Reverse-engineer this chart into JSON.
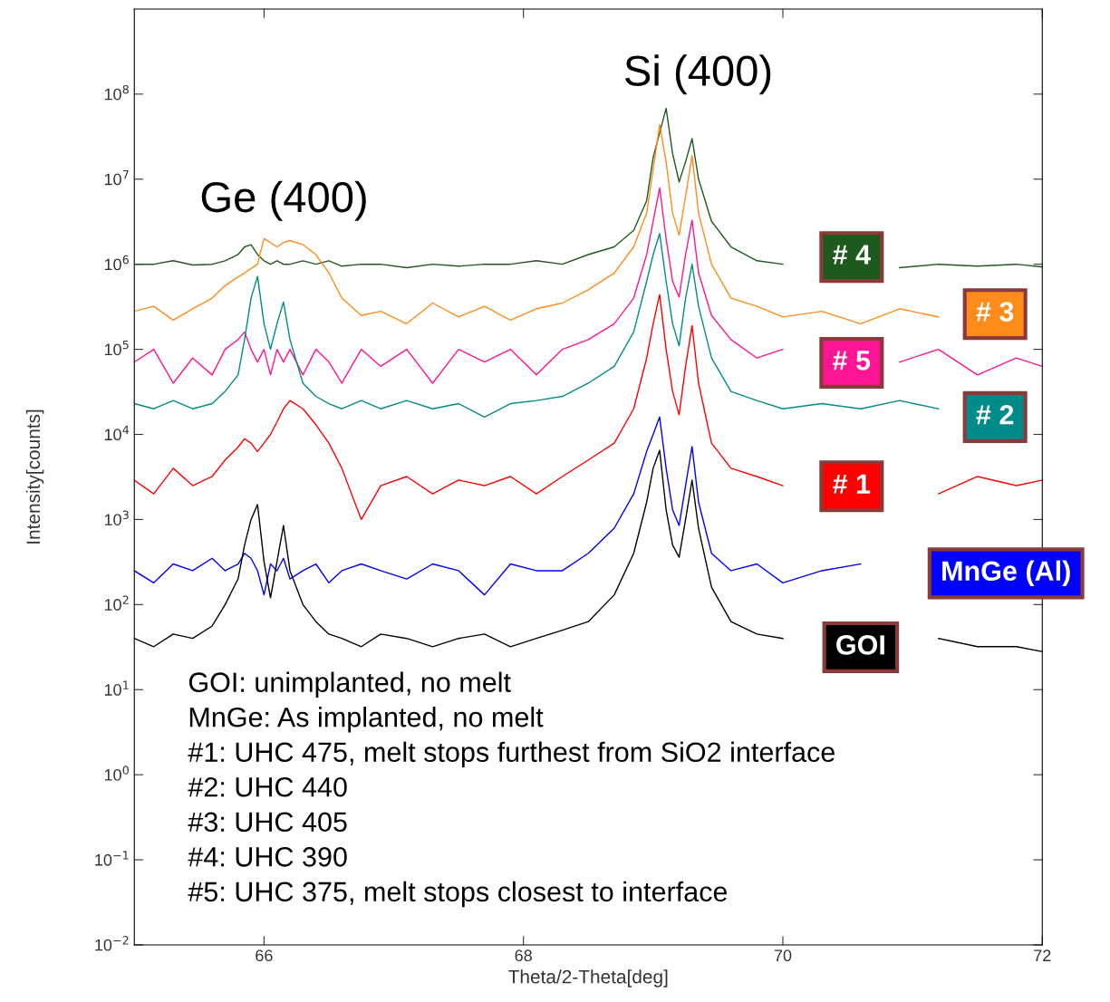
{
  "chart_data": {
    "type": "line",
    "xlabel": "Theta/2-Theta[deg]",
    "ylabel": "Intensity[counts]",
    "xlim": [
      65,
      72
    ],
    "xticks": [
      66,
      68,
      70,
      72
    ],
    "log": "y",
    "ylim": [
      0.01,
      1000000000
    ],
    "yticks": [
      {
        "value": 0.01,
        "label": "10$^{−2}$"
      },
      {
        "value": 0.1,
        "label": "10$^{−1}$"
      },
      {
        "value": 1,
        "label": "10$^{0}$"
      },
      {
        "value": 10,
        "label": "10$^{1}$"
      },
      {
        "value": 100,
        "label": "10$^{2}$"
      },
      {
        "value": 1000,
        "label": "10$^{3}$"
      },
      {
        "value": 10000,
        "label": "10$^{4}$"
      },
      {
        "value": 100000,
        "label": "10$^{5}$"
      },
      {
        "value": 1000000,
        "label": "10$^{6}$"
      },
      {
        "value": 10000000,
        "label": "10$^{7}$"
      },
      {
        "value": 100000000,
        "label": "10$^{8}$"
      }
    ],
    "grid": false,
    "legend": false,
    "marker": "none",
    "line_style": "solid",
    "x": [
      65.0,
      65.15,
      65.3,
      65.45,
      65.6,
      65.7,
      65.8,
      65.85,
      65.9,
      65.95,
      66.0,
      66.05,
      66.1,
      66.15,
      66.2,
      66.3,
      66.4,
      66.5,
      66.6,
      66.75,
      66.9,
      67.1,
      67.3,
      67.5,
      67.7,
      67.9,
      68.1,
      68.3,
      68.5,
      68.7,
      68.85,
      68.95,
      69.0,
      69.05,
      69.1,
      69.15,
      69.2,
      69.25,
      69.3,
      69.35,
      69.45,
      69.6,
      69.8,
      70.0,
      70.3,
      70.6,
      70.9,
      71.2,
      71.5,
      71.8,
      72.0
    ],
    "series": [
      {
        "name": "# 4",
        "color": "#1e5a1e",
        "values": [
          1000000.0,
          1000000.0,
          1100000.0,
          980000.0,
          1000000.0,
          1100000.0,
          1300000.0,
          1600000.0,
          1700000.0,
          1300000.0,
          1100000.0,
          1000000.0,
          1100000.0,
          1000000.0,
          1000000.0,
          1100000.0,
          1000000.0,
          1100000.0,
          950000.0,
          1000000.0,
          1000000.0,
          910000.0,
          1000000.0,
          950000.0,
          1000000.0,
          1000000.0,
          1100000.0,
          1000000.0,
          1300000.0,
          1600000.0,
          2500000.0,
          5600000.0,
          18000000.0,
          35000000.0,
          68000000.0,
          20000000.0,
          9300000.0,
          16000000.0,
          30000000.0,
          10000000.0,
          3200000.0,
          1600000.0,
          1100000.0,
          1000000.0,
          null,
          null,
          910000.0,
          1000000.0,
          950000.0,
          1000000.0,
          930000.0
        ]
      },
      {
        "name": "# 3",
        "color": "#ff8c1a",
        "values": [
          280000.0,
          320000.0,
          220000.0,
          300000.0,
          400000.0,
          560000.0,
          710000.0,
          790000.0,
          890000.0,
          1000000.0,
          2000000.0,
          1800000.0,
          1600000.0,
          1800000.0,
          1900000.0,
          1700000.0,
          1300000.0,
          790000.0,
          400000.0,
          250000.0,
          280000.0,
          200000.0,
          350000.0,
          240000.0,
          320000.0,
          220000.0,
          300000.0,
          350000.0,
          500000.0,
          790000.0,
          1600000.0,
          4000000.0,
          13000000.0,
          44000000.0,
          16000000.0,
          4000000.0,
          2200000.0,
          6300000.0,
          19000000.0,
          4000000.0,
          1000000.0,
          400000.0,
          320000.0,
          240000.0,
          280000.0,
          200000.0,
          300000.0,
          240000.0,
          null,
          null,
          null
        ]
      },
      {
        "name": "# 5",
        "color": "#ff1493",
        "values": [
          71000.0,
          100000.0,
          40000.0,
          79000.0,
          50000.0,
          100000.0,
          130000.0,
          160000.0,
          100000.0,
          71000.0,
          100000.0,
          50000.0,
          100000.0,
          71000.0,
          100000.0,
          50000.0,
          100000.0,
          71000.0,
          40000.0,
          100000.0,
          63000.0,
          100000.0,
          40000.0,
          100000.0,
          71000.0,
          100000.0,
          50000.0,
          100000.0,
          130000.0,
          200000.0,
          400000.0,
          1300000.0,
          3200000.0,
          7900000.0,
          2000000.0,
          630000.0,
          410000.0,
          1300000.0,
          3300000.0,
          790000.0,
          250000.0,
          130000.0,
          79000.0,
          100000.0,
          null,
          null,
          71000.0,
          100000.0,
          50000.0,
          79000.0,
          63000.0
        ]
      },
      {
        "name": "# 2",
        "color": "#008b8b",
        "values": [
          23000.0,
          20000.0,
          25000.0,
          20000.0,
          23000.0,
          32000.0,
          50000.0,
          130000.0,
          400000.0,
          720000.0,
          200000.0,
          100000.0,
          200000.0,
          360000.0,
          130000.0,
          40000.0,
          28000.0,
          23000.0,
          20000.0,
          25000.0,
          20000.0,
          25000.0,
          20000.0,
          23000.0,
          16000.0,
          23000.0,
          25000.0,
          28000.0,
          40000.0,
          63000.0,
          160000.0,
          630000.0,
          1300000.0,
          2300000.0,
          630000.0,
          200000.0,
          110000.0,
          400000.0,
          1000000.0,
          320000.0,
          79000.0,
          32000.0,
          25000.0,
          20000.0,
          23000.0,
          20000.0,
          25000.0,
          20000.0,
          null,
          null,
          null
        ]
      },
      {
        "name": "# 1",
        "color": "#ff0000",
        "values": [
          2900.0,
          2000.0,
          4000.0,
          2500.0,
          3200.0,
          5000.0,
          7100.0,
          8900.0,
          7900.0,
          6300.0,
          7900.0,
          10000.0,
          14000.0,
          20000.0,
          25000.0,
          20000.0,
          13000.0,
          7900.0,
          4000.0,
          1000.0,
          2500.0,
          3200.0,
          2000.0,
          2900.0,
          2500.0,
          3200.0,
          2000.0,
          3200.0,
          5000.0,
          7900.0,
          20000.0,
          79000.0,
          200000.0,
          440000.0,
          100000.0,
          32000.0,
          17000.0,
          63000.0,
          190000.0,
          40000.0,
          7900.0,
          4000.0,
          3200.0,
          2500.0,
          null,
          null,
          null,
          2000.0,
          3200.0,
          2500.0,
          2900.0
        ]
      },
      {
        "name": "MnGe (Al)",
        "color": "#0000ff",
        "values": [
          250,
          180,
          300,
          250,
          350,
          250,
          300,
          400,
          350,
          250,
          130,
          300,
          250,
          350,
          200,
          250,
          300,
          180,
          250,
          300,
          250,
          200,
          300,
          250,
          130,
          300,
          250,
          250,
          400,
          790,
          2000,
          6300,
          10000.0,
          16000.0,
          4000,
          1300,
          850,
          2500,
          7200,
          1600,
          400,
          250,
          300,
          180,
          250,
          300,
          null,
          null,
          null,
          null,
          null
        ]
      },
      {
        "name": "GOI",
        "color": "#000000",
        "values": [
          40,
          32,
          45,
          40,
          56,
          100,
          200,
          500,
          1000,
          1500,
          320,
          120,
          320,
          850,
          250,
          100,
          63,
          45,
          40,
          32,
          45,
          40,
          32,
          40,
          45,
          32,
          40,
          50,
          63,
          130,
          400,
          1600,
          4000,
          6500,
          1300,
          500,
          360,
          1000,
          2900,
          790,
          160,
          63,
          45,
          40,
          null,
          null,
          null,
          40,
          32,
          32,
          28
        ]
      }
    ],
    "annotations": [
      "Ge (400)",
      "Si (400)",
      "GOI: unimplanted, no melt",
      "MnGe: As implanted, no melt",
      "#1: UHC 475, melt stops furthest from SiO2 interface",
      "#2: UHC 440",
      "#3: UHC 405",
      "#4: UHC 390",
      "#5: UHC 375, melt stops closest to interface"
    ]
  }
}
